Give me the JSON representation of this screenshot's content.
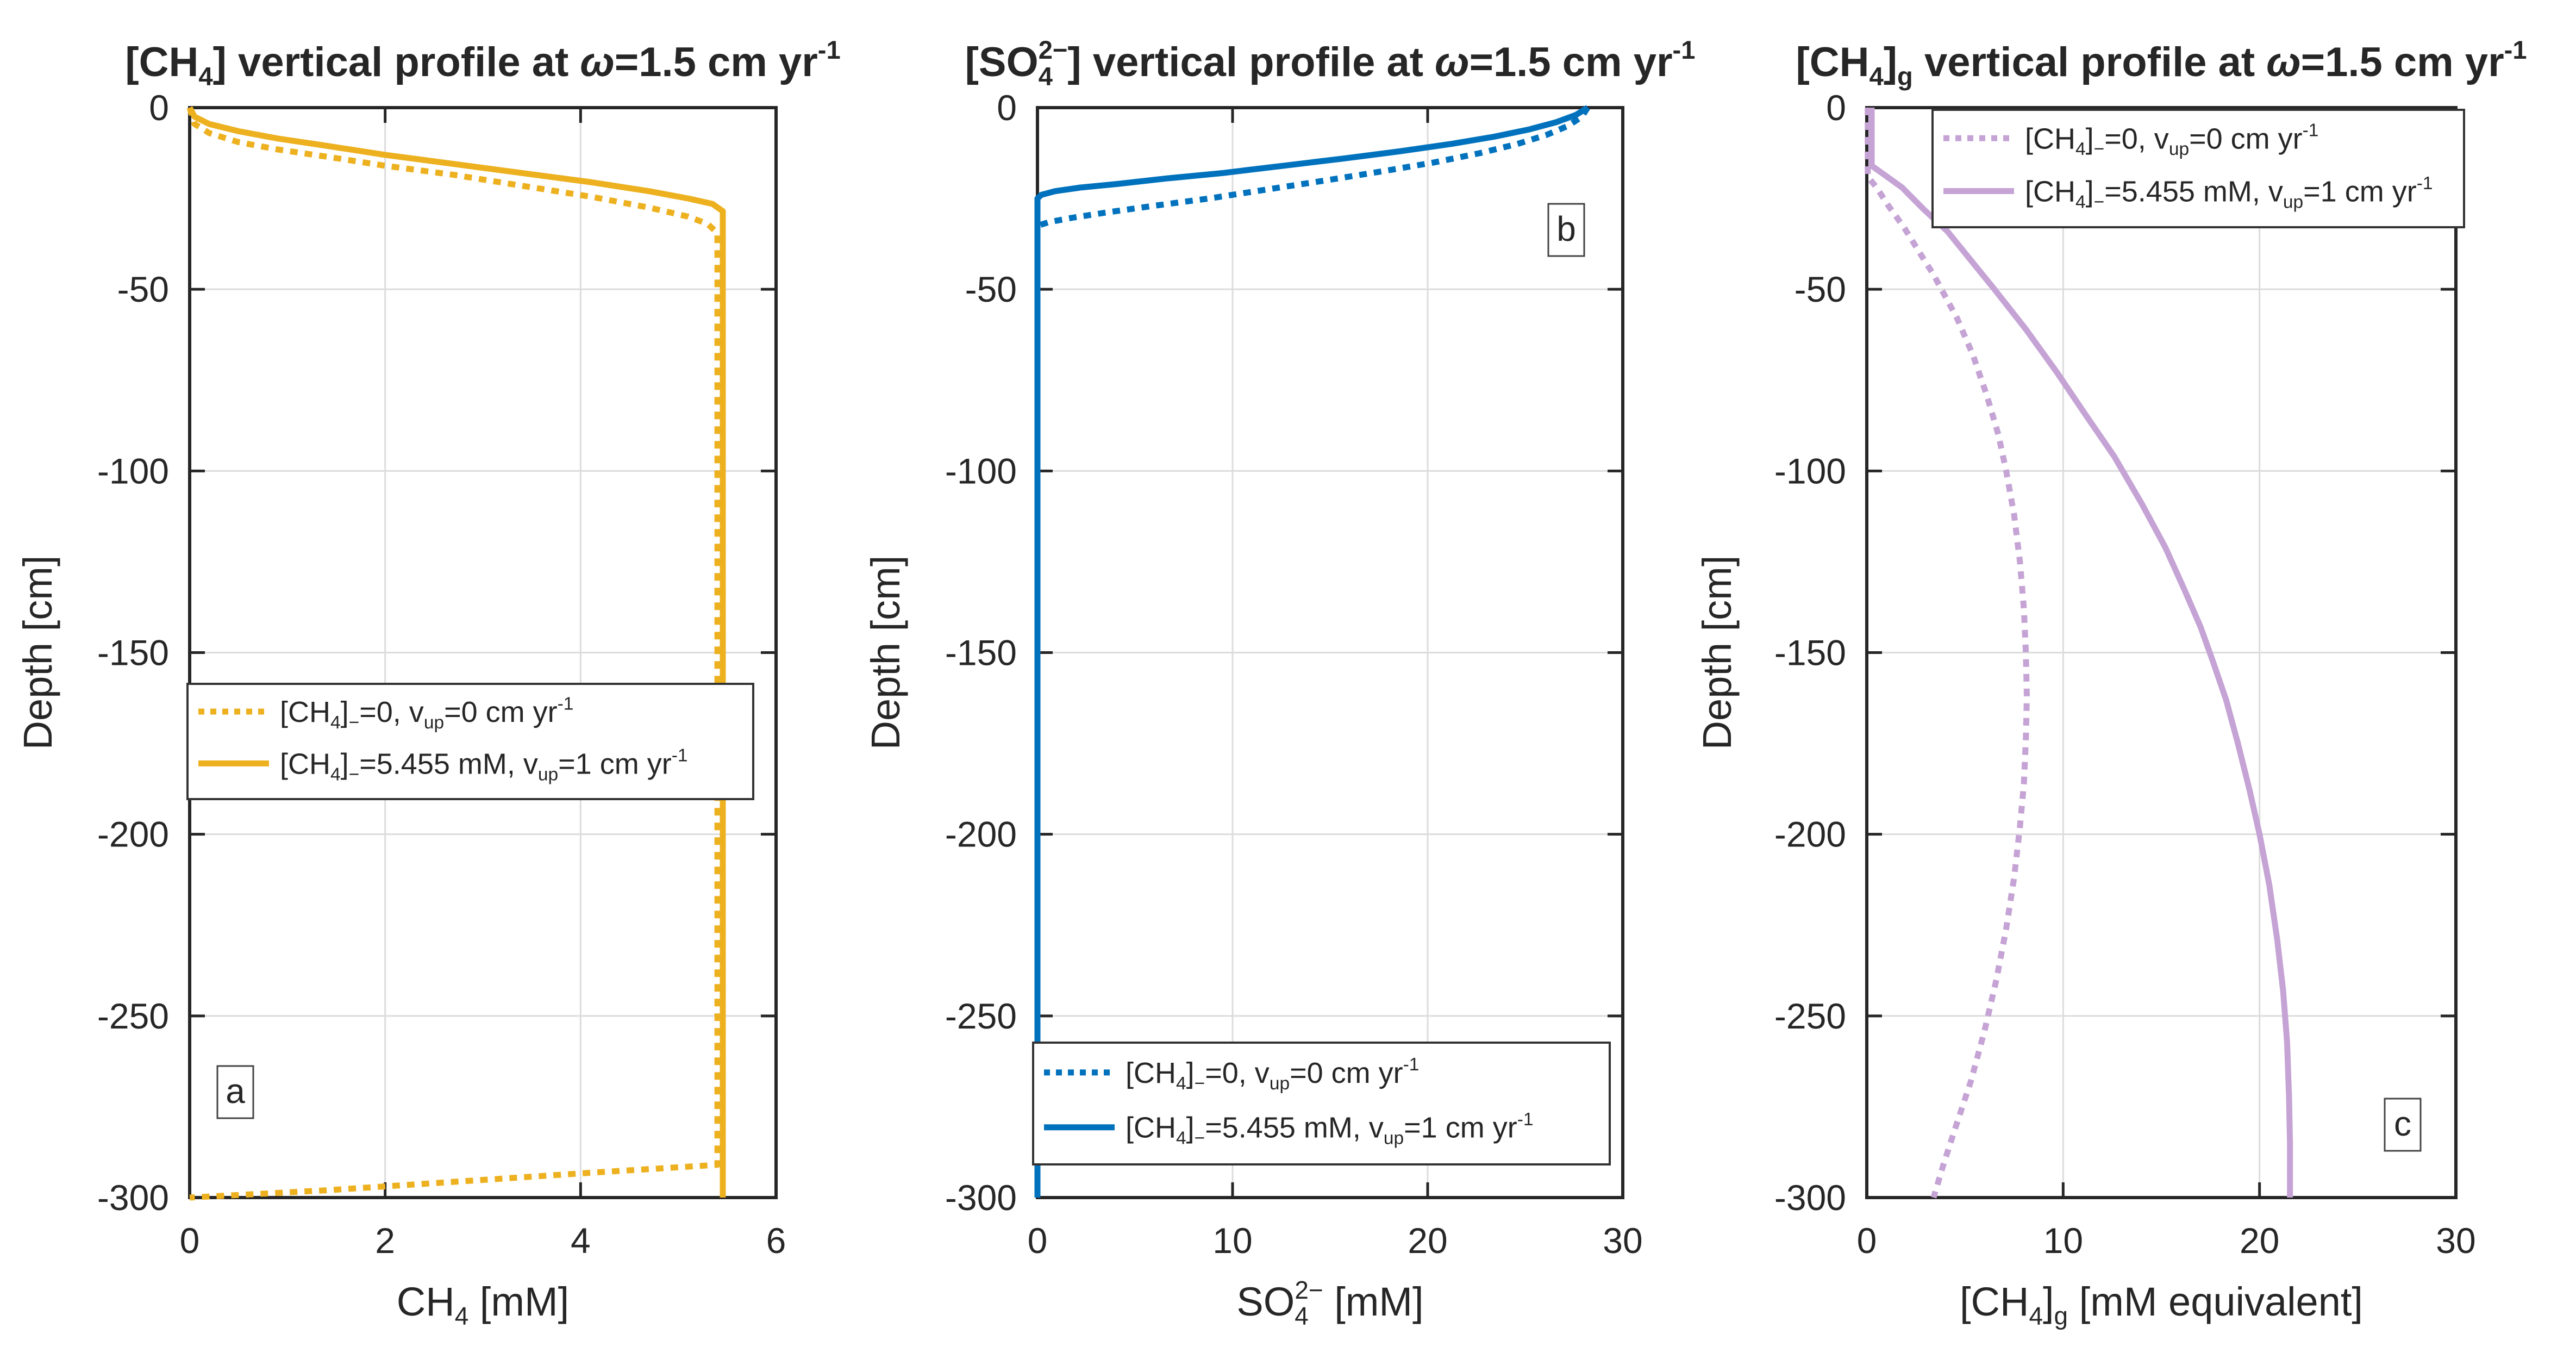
{
  "figure": {
    "background": "#ffffff",
    "text_color": "#262626",
    "axis_color": "#262626",
    "grid_color": "#dcdcdc",
    "legend_border_color": "#333333",
    "colors": {
      "panel_a": "#EDB120",
      "panel_b": "#0072BD",
      "panel_c": "#C5A3D5"
    }
  },
  "chart_data": [
    {
      "type": "line",
      "panel_label": "a",
      "title": "[CH₄] vertical profile at ω=1.5 cm yr⁻¹",
      "title_parts": [
        {
          "t": "[CH"
        },
        {
          "t": "4",
          "sub": true
        },
        {
          "t": "] vertical profile at "
        },
        {
          "t": "ω",
          "italic": true
        },
        {
          "t": "=1.5 cm yr"
        },
        {
          "t": "-1",
          "sup": true
        }
      ],
      "xlabel": "CH₄ [mM]",
      "xlabel_parts": [
        {
          "t": "CH"
        },
        {
          "t": "4",
          "sub": true
        },
        {
          "t": " [mM]"
        }
      ],
      "ylabel": "Depth [cm]",
      "xlim": [
        0,
        6
      ],
      "ylim": [
        -300,
        0
      ],
      "xticks": [
        0,
        2,
        4,
        6
      ],
      "xtick_labels": [
        "0",
        "2",
        "4",
        "6"
      ],
      "yticks": [
        0,
        -50,
        -100,
        -150,
        -200,
        -250,
        -300
      ],
      "ytick_labels": [
        "0",
        "-50",
        "-100",
        "-150",
        "-200",
        "-250",
        "-300"
      ],
      "grid": true,
      "legend_location": "middle-left",
      "series": [
        {
          "name": "[CH₄]₋=0, vᵤₚ=0 cm yr⁻¹",
          "label_parts": [
            {
              "t": "[CH"
            },
            {
              "t": "4",
              "sub": true
            },
            {
              "t": "]"
            },
            {
              "t": "−",
              "sub": true
            },
            {
              "t": "=0, v"
            },
            {
              "t": "up",
              "sub": true
            },
            {
              "t": "=0 cm yr"
            },
            {
              "t": "-1",
              "sup": true
            }
          ],
          "style": "dotted",
          "color": "#EDB120",
          "points": [
            [
              0,
              0
            ],
            [
              0.05,
              -4.5
            ],
            [
              0.2,
              -7
            ],
            [
              0.5,
              -9.5
            ],
            [
              0.9,
              -11.5
            ],
            [
              1.4,
              -13.5
            ],
            [
              2.0,
              -16
            ],
            [
              2.7,
              -18.5
            ],
            [
              3.4,
              -21.5
            ],
            [
              4.1,
              -24.5
            ],
            [
              4.7,
              -27.5
            ],
            [
              5.1,
              -30
            ],
            [
              5.3,
              -32
            ],
            [
              5.4,
              -34.5
            ],
            [
              5.4,
              -291
            ],
            [
              4.2,
              -293
            ],
            [
              2.8,
              -295.5
            ],
            [
              1.4,
              -298
            ],
            [
              0,
              -300
            ]
          ]
        },
        {
          "name": "[CH₄]₋=5.455 mM, vᵤₚ=1 cm yr⁻¹",
          "label_parts": [
            {
              "t": "[CH"
            },
            {
              "t": "4",
              "sub": true
            },
            {
              "t": "]"
            },
            {
              "t": "−",
              "sub": true
            },
            {
              "t": "=5.455 mM, v"
            },
            {
              "t": "up",
              "sub": true
            },
            {
              "t": "=1 cm yr"
            },
            {
              "t": "-1",
              "sup": true
            }
          ],
          "style": "solid",
          "color": "#EDB120",
          "points": [
            [
              0,
              0
            ],
            [
              0.05,
              -2.5
            ],
            [
              0.2,
              -4.5
            ],
            [
              0.5,
              -6.5
            ],
            [
              0.9,
              -8.5
            ],
            [
              1.4,
              -10.5
            ],
            [
              2.0,
              -13
            ],
            [
              2.7,
              -15.5
            ],
            [
              3.4,
              -18
            ],
            [
              4.1,
              -20.5
            ],
            [
              4.7,
              -23
            ],
            [
              5.1,
              -25
            ],
            [
              5.35,
              -26.5
            ],
            [
              5.455,
              -28.5
            ],
            [
              5.455,
              -300
            ]
          ]
        }
      ]
    },
    {
      "type": "line",
      "panel_label": "b",
      "title": "[SO₄²⁻] vertical profile at ω=1.5 cm yr⁻¹",
      "title_parts": [
        {
          "t": "[SO"
        },
        {
          "t": "4",
          "sub": true
        },
        {
          "t": "2−",
          "sup": true,
          "stack": true
        },
        {
          "t": "] vertical profile at "
        },
        {
          "t": "ω",
          "italic": true
        },
        {
          "t": "=1.5 cm yr"
        },
        {
          "t": "-1",
          "sup": true
        }
      ],
      "xlabel": "SO₄²⁻ [mM]",
      "xlabel_parts": [
        {
          "t": "SO"
        },
        {
          "t": "4",
          "sub": true
        },
        {
          "t": "2−",
          "sup": true,
          "stack": true
        },
        {
          "t": " [mM]"
        }
      ],
      "ylabel": "Depth [cm]",
      "xlim": [
        0,
        30
      ],
      "ylim": [
        -300,
        0
      ],
      "xticks": [
        0,
        10,
        20,
        30
      ],
      "xtick_labels": [
        "0",
        "10",
        "20",
        "30"
      ],
      "yticks": [
        0,
        -50,
        -100,
        -150,
        -200,
        -250,
        -300
      ],
      "ytick_labels": [
        "0",
        "-50",
        "-100",
        "-150",
        "-200",
        "-250",
        "-300"
      ],
      "grid": true,
      "legend_location": "bottom",
      "series": [
        {
          "name": "[CH₄]₋=0, vᵤₚ=0 cm yr⁻¹",
          "label_parts": [
            {
              "t": "[CH"
            },
            {
              "t": "4",
              "sub": true
            },
            {
              "t": "]"
            },
            {
              "t": "−",
              "sub": true
            },
            {
              "t": "=0, v"
            },
            {
              "t": "up",
              "sub": true
            },
            {
              "t": "=0 cm yr"
            },
            {
              "t": "-1",
              "sup": true
            }
          ],
          "style": "dotted",
          "color": "#0072BD",
          "points": [
            [
              28.2,
              0
            ],
            [
              27.9,
              -2.5
            ],
            [
              27.2,
              -5
            ],
            [
              26.1,
              -7.5
            ],
            [
              24.6,
              -10
            ],
            [
              22.7,
              -12.5
            ],
            [
              20.4,
              -15
            ],
            [
              17.7,
              -17.5
            ],
            [
              14.8,
              -20
            ],
            [
              11.8,
              -22.5
            ],
            [
              8.8,
              -25
            ],
            [
              6.0,
              -27
            ],
            [
              3.6,
              -28.8
            ],
            [
              1.8,
              -30.3
            ],
            [
              0.6,
              -31.5
            ],
            [
              0,
              -32.5
            ],
            [
              0,
              -300
            ]
          ]
        },
        {
          "name": "[CH₄]₋=5.455 mM, vᵤₚ=1 cm yr⁻¹",
          "label_parts": [
            {
              "t": "[CH"
            },
            {
              "t": "4",
              "sub": true
            },
            {
              "t": "]"
            },
            {
              "t": "−",
              "sub": true
            },
            {
              "t": "=5.455 mM, v"
            },
            {
              "t": "up",
              "sub": true
            },
            {
              "t": "=1 cm yr"
            },
            {
              "t": "-1",
              "sup": true
            }
          ],
          "style": "solid",
          "color": "#0072BD",
          "points": [
            [
              28.2,
              0
            ],
            [
              27.6,
              -2
            ],
            [
              26.6,
              -4
            ],
            [
              25.2,
              -6
            ],
            [
              23.4,
              -8
            ],
            [
              21.2,
              -10
            ],
            [
              18.6,
              -12
            ],
            [
              15.7,
              -14
            ],
            [
              12.6,
              -16
            ],
            [
              9.5,
              -18
            ],
            [
              6.6,
              -19.5
            ],
            [
              4.1,
              -21
            ],
            [
              2.2,
              -22
            ],
            [
              0.9,
              -23
            ],
            [
              0.2,
              -24
            ],
            [
              0,
              -25
            ],
            [
              0,
              -300
            ]
          ]
        }
      ]
    },
    {
      "type": "line",
      "panel_label": "c",
      "title": "[CH₄]g vertical profile at ω=1.5 cm yr⁻¹",
      "title_parts": [
        {
          "t": "[CH"
        },
        {
          "t": "4",
          "sub": true
        },
        {
          "t": "]"
        },
        {
          "t": "g",
          "sub": true
        },
        {
          "t": " vertical profile at "
        },
        {
          "t": "ω",
          "italic": true
        },
        {
          "t": "=1.5 cm yr"
        },
        {
          "t": "-1",
          "sup": true
        }
      ],
      "xlabel": "[CH₄]g [mM equivalent]",
      "xlabel_parts": [
        {
          "t": "[CH"
        },
        {
          "t": "4",
          "sub": true
        },
        {
          "t": "]"
        },
        {
          "t": "g",
          "sub": true
        },
        {
          "t": " [mM equivalent]"
        }
      ],
      "ylabel": "Depth [cm]",
      "xlim": [
        0,
        30
      ],
      "ylim": [
        -300,
        0
      ],
      "xticks": [
        0,
        10,
        20,
        30
      ],
      "xtick_labels": [
        "0",
        "10",
        "20",
        "30"
      ],
      "yticks": [
        0,
        -50,
        -100,
        -150,
        -200,
        -250,
        -300
      ],
      "ytick_labels": [
        "0",
        "-50",
        "-100",
        "-150",
        "-200",
        "-250",
        "-300"
      ],
      "grid": true,
      "legend_location": "top-right",
      "series": [
        {
          "name": "[CH₄]₋=0, vᵤₚ=0 cm yr⁻¹",
          "label_parts": [
            {
              "t": "[CH"
            },
            {
              "t": "4",
              "sub": true
            },
            {
              "t": "]"
            },
            {
              "t": "−",
              "sub": true
            },
            {
              "t": "=0, v"
            },
            {
              "t": "up",
              "sub": true
            },
            {
              "t": "=0 cm yr"
            },
            {
              "t": "-1",
              "sup": true
            }
          ],
          "style": "dotted",
          "color": "#C5A3D5",
          "points": [
            [
              0.05,
              0
            ],
            [
              0.05,
              -19
            ],
            [
              0.5,
              -22
            ],
            [
              1.1,
              -27
            ],
            [
              1.9,
              -33
            ],
            [
              2.7,
              -40
            ],
            [
              3.4,
              -46
            ],
            [
              3.8,
              -50
            ],
            [
              4.6,
              -58
            ],
            [
              5.4,
              -68
            ],
            [
              6.1,
              -79
            ],
            [
              6.7,
              -90
            ],
            [
              7.1,
              -100
            ],
            [
              7.5,
              -112
            ],
            [
              7.8,
              -125
            ],
            [
              8.0,
              -138
            ],
            [
              8.1,
              -150
            ],
            [
              8.15,
              -162
            ],
            [
              8.1,
              -174
            ],
            [
              8.0,
              -186
            ],
            [
              7.8,
              -198
            ],
            [
              7.5,
              -212
            ],
            [
              7.1,
              -226
            ],
            [
              6.6,
              -240
            ],
            [
              6.0,
              -254
            ],
            [
              5.3,
              -268
            ],
            [
              4.5,
              -281
            ],
            [
              3.9,
              -291
            ],
            [
              3.4,
              -300
            ]
          ]
        },
        {
          "name": "[CH₄]₋=5.455 mM, vᵤₚ=1 cm yr⁻¹",
          "label_parts": [
            {
              "t": "[CH"
            },
            {
              "t": "4",
              "sub": true
            },
            {
              "t": "]"
            },
            {
              "t": "−",
              "sub": true
            },
            {
              "t": "=5.455 mM, v"
            },
            {
              "t": "up",
              "sub": true
            },
            {
              "t": "=1 cm yr"
            },
            {
              "t": "-1",
              "sup": true
            }
          ],
          "style": "solid",
          "color": "#C5A3D5",
          "points": [
            [
              0.25,
              0
            ],
            [
              0.25,
              -16
            ],
            [
              0.9,
              -18.5
            ],
            [
              1.8,
              -22
            ],
            [
              2.9,
              -28
            ],
            [
              4.1,
              -34
            ],
            [
              5.3,
              -42
            ],
            [
              6.5,
              -50
            ],
            [
              8.1,
              -61
            ],
            [
              9.7,
              -73
            ],
            [
              11.2,
              -85
            ],
            [
              12.6,
              -96
            ],
            [
              14,
              -109
            ],
            [
              15.2,
              -121
            ],
            [
              16.2,
              -133
            ],
            [
              17,
              -143
            ],
            [
              17.6,
              -152
            ],
            [
              18.3,
              -163
            ],
            [
              18.9,
              -175
            ],
            [
              19.5,
              -188
            ],
            [
              20,
              -200
            ],
            [
              20.5,
              -214
            ],
            [
              20.9,
              -229
            ],
            [
              21.2,
              -243
            ],
            [
              21.4,
              -257
            ],
            [
              21.5,
              -272
            ],
            [
              21.55,
              -285
            ],
            [
              21.55,
              -300
            ]
          ]
        }
      ]
    }
  ]
}
